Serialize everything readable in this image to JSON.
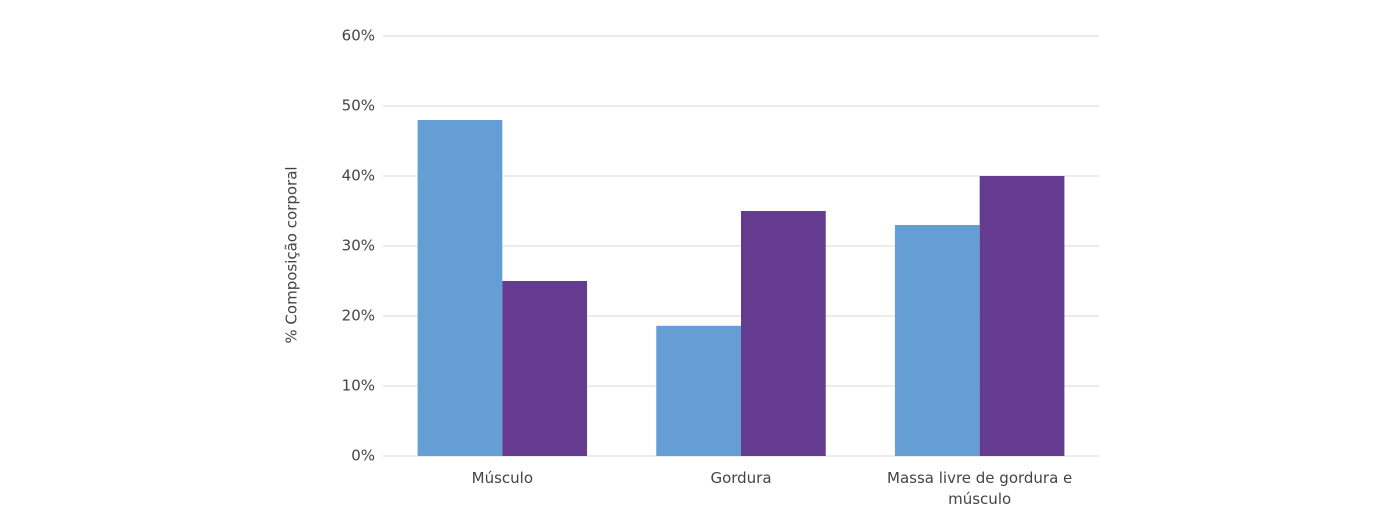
{
  "chart_data": {
    "type": "bar",
    "ylabel": "% Composição corporal",
    "categories": [
      "Músculo",
      "Gordura",
      "Massa livre de gordura e músculo"
    ],
    "series": [
      {
        "color": "#659ed4",
        "values": [
          48,
          18.6,
          33
        ]
      },
      {
        "color": "#653b8f",
        "values": [
          25,
          35,
          40
        ]
      }
    ],
    "ylim": [
      0,
      60
    ],
    "yticks": [
      {
        "value": 0,
        "label": "0%"
      },
      {
        "value": 10,
        "label": "10%"
      },
      {
        "value": 20,
        "label": "20%"
      },
      {
        "value": 30,
        "label": "30%"
      },
      {
        "value": 40,
        "label": "40%"
      },
      {
        "value": 50,
        "label": "50%"
      },
      {
        "value": 60,
        "label": "60%"
      }
    ],
    "grid": true
  }
}
